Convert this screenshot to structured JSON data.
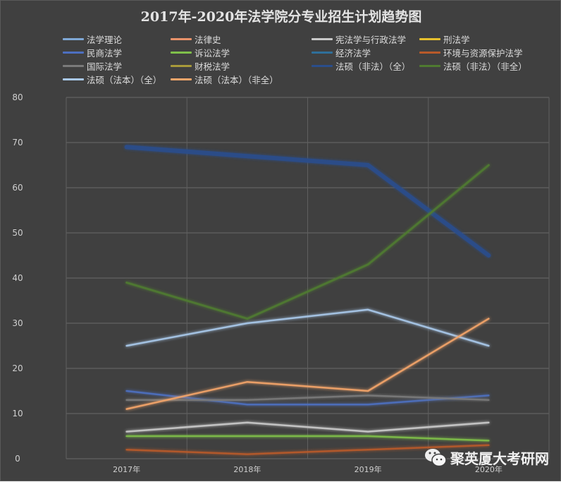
{
  "chart_data": {
    "type": "line",
    "title": "2017年-2020年法学院分专业招生计划趋势图",
    "xlabel": "",
    "ylabel": "",
    "categories": [
      "2017年",
      "2018年",
      "2019年",
      "2020年"
    ],
    "ylim": [
      0,
      80
    ],
    "yticks": [
      0,
      10,
      20,
      30,
      40,
      50,
      60,
      70,
      80
    ],
    "grid": true,
    "legend_position": "top",
    "series": [
      {
        "name": "法学理论",
        "color": "#7fa8d6",
        "values": [
          5,
          5,
          5,
          5
        ]
      },
      {
        "name": "法律史",
        "color": "#e8926a",
        "values": [
          4,
          4,
          4,
          4
        ]
      },
      {
        "name": "宪法学与行政法学",
        "color": "#c9c9c9",
        "values": [
          6,
          8,
          6,
          8
        ]
      },
      {
        "name": "刑法学",
        "color": "#e6c02e",
        "values": [
          6,
          6,
          6,
          6
        ]
      },
      {
        "name": "民商法学",
        "color": "#4d6fc0",
        "values": [
          15,
          12,
          12,
          14
        ]
      },
      {
        "name": "诉讼法学",
        "color": "#7fbf4a",
        "values": [
          5,
          5,
          5,
          4
        ]
      },
      {
        "name": "经济法学",
        "color": "#2f6f9a",
        "values": [
          4,
          4,
          4,
          4
        ]
      },
      {
        "name": "环境与资源保护法学",
        "color": "#b85a2a",
        "values": [
          2,
          1,
          2,
          3
        ]
      },
      {
        "name": "国际法学",
        "color": "#7a7a7a",
        "values": [
          13,
          13,
          14,
          13
        ]
      },
      {
        "name": "财税法学",
        "color": "#a89a3a",
        "values": [
          6,
          6,
          6,
          6
        ]
      },
      {
        "name": "法硕（非法）（全）",
        "color": "#2a4e8c",
        "values": [
          69,
          67,
          65,
          45
        ]
      },
      {
        "name": "法硕（非法）（非全）",
        "color": "#4f7a30",
        "values": [
          39,
          31,
          43,
          65
        ]
      },
      {
        "name": "法硕（法本）（全）",
        "color": "#a9c8ea",
        "values": [
          25,
          30,
          33,
          25
        ]
      },
      {
        "name": "法硕（法本）（非全）",
        "color": "#f4a56a",
        "values": [
          11,
          17,
          15,
          31
        ]
      }
    ]
  },
  "watermark": {
    "icon": "wechat-icon",
    "text": "聚英厦大考研网"
  }
}
